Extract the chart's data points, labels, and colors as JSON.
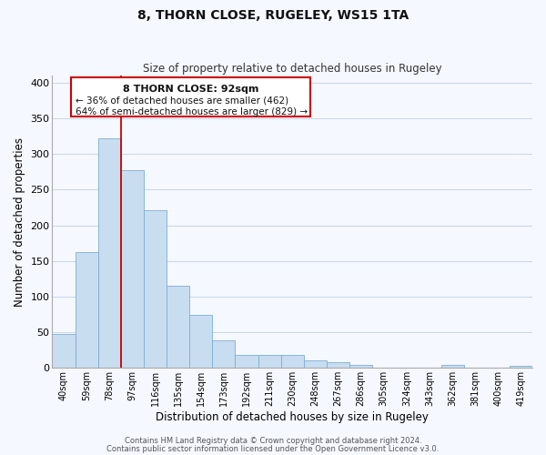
{
  "title": "8, THORN CLOSE, RUGELEY, WS15 1TA",
  "subtitle": "Size of property relative to detached houses in Rugeley",
  "xlabel": "Distribution of detached houses by size in Rugeley",
  "ylabel": "Number of detached properties",
  "bar_labels": [
    "40sqm",
    "59sqm",
    "78sqm",
    "97sqm",
    "116sqm",
    "135sqm",
    "154sqm",
    "173sqm",
    "192sqm",
    "211sqm",
    "230sqm",
    "248sqm",
    "267sqm",
    "286sqm",
    "305sqm",
    "324sqm",
    "343sqm",
    "362sqm",
    "381sqm",
    "400sqm",
    "419sqm"
  ],
  "bar_values": [
    47,
    163,
    322,
    278,
    221,
    115,
    74,
    39,
    18,
    18,
    18,
    10,
    8,
    4,
    0,
    0,
    0,
    4,
    0,
    0,
    3
  ],
  "bar_color": "#c9ddf0",
  "bar_edge_color": "#7aafd4",
  "vline_x_index": 3,
  "vline_color": "#cc0000",
  "ylim": [
    0,
    410
  ],
  "yticks": [
    0,
    50,
    100,
    150,
    200,
    250,
    300,
    350,
    400
  ],
  "annotation_title": "8 THORN CLOSE: 92sqm",
  "annotation_line1": "← 36% of detached houses are smaller (462)",
  "annotation_line2": "64% of semi-detached houses are larger (829) →",
  "footer_line1": "Contains HM Land Registry data © Crown copyright and database right 2024.",
  "footer_line2": "Contains public sector information licensed under the Open Government Licence v3.0.",
  "background_color": "#f5f8ff",
  "grid_color": "#c8d4e8"
}
